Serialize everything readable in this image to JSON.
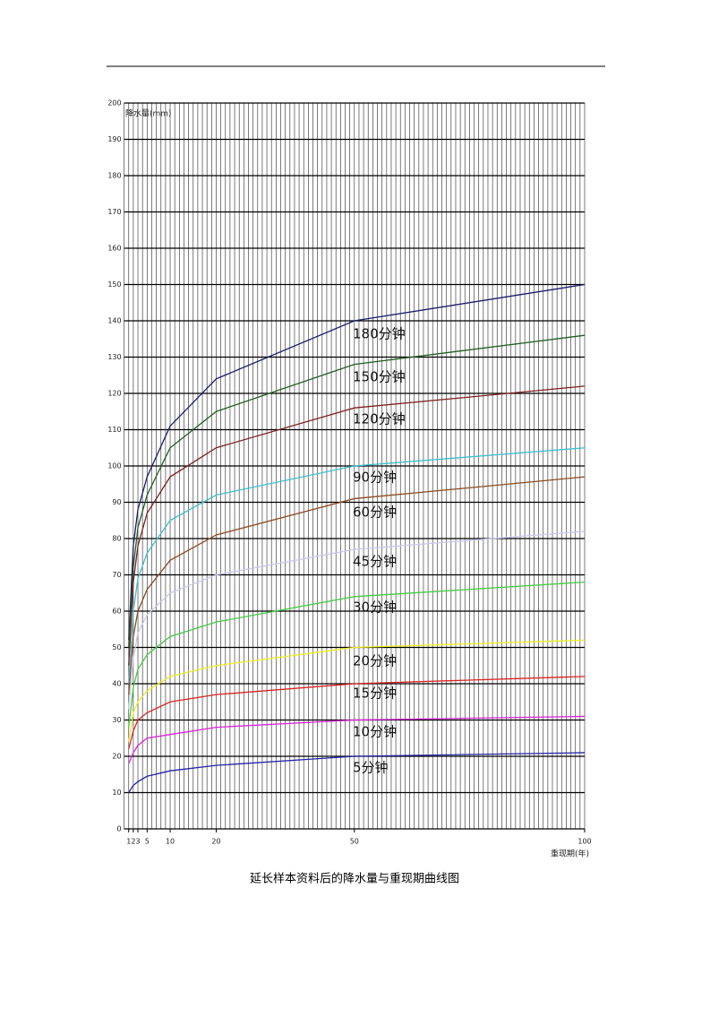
{
  "chart_data": {
    "type": "line",
    "caption": "延长样本资料后的降水量与重现期曲线图",
    "y_label": "降水量(mm)",
    "x_label": "重现期(年)",
    "xlim": [
      0,
      100
    ],
    "ylim": [
      0,
      200
    ],
    "xticks": [
      1,
      2,
      3,
      5,
      10,
      20,
      50,
      100
    ],
    "yticks": [
      0,
      10,
      20,
      30,
      40,
      50,
      60,
      70,
      80,
      90,
      100,
      110,
      120,
      130,
      140,
      150,
      160,
      170,
      180,
      190,
      200
    ],
    "x_minor_grid_step": 1,
    "grid": true,
    "x": [
      1,
      2,
      3,
      5,
      10,
      20,
      50,
      100
    ],
    "series": [
      {
        "name": "180分钟",
        "color": "#1a1a6e",
        "values": [
          52,
          78,
          88,
          97,
          111,
          124,
          140,
          150
        ]
      },
      {
        "name": "150分钟",
        "color": "#1f5f1f",
        "values": [
          50,
          72,
          83,
          92,
          105,
          115,
          128,
          136
        ]
      },
      {
        "name": "120分钟",
        "color": "#7f1f1f",
        "values": [
          45,
          68,
          78,
          87,
          97,
          105,
          116,
          122
        ]
      },
      {
        "name": "90分钟",
        "color": "#3cbfcf",
        "values": [
          40,
          60,
          69,
          76,
          85,
          92,
          100,
          105
        ]
      },
      {
        "name": "60分钟",
        "color": "#8b4a1f",
        "values": [
          37,
          53,
          60,
          66,
          74,
          81,
          91,
          97
        ]
      },
      {
        "name": "45分钟",
        "color": "#c8c8ee",
        "values": [
          33,
          47,
          54,
          59,
          65,
          70,
          77,
          82
        ]
      },
      {
        "name": "30分钟",
        "color": "#44cc44",
        "values": [
          28,
          39,
          44,
          48,
          53,
          57,
          64,
          68
        ]
      },
      {
        "name": "20分钟",
        "color": "#eeee22",
        "values": [
          24,
          32,
          35,
          38,
          42,
          45,
          50,
          52
        ]
      },
      {
        "name": "15分钟",
        "color": "#dd2222",
        "values": [
          22,
          27,
          30,
          32,
          35,
          37,
          40,
          42
        ]
      },
      {
        "name": "10分钟",
        "color": "#dd22dd",
        "values": [
          18,
          21,
          23,
          25,
          26,
          28,
          30,
          31
        ]
      },
      {
        "name": "5分钟",
        "color": "#2222aa",
        "values": [
          10,
          12,
          13,
          14.5,
          16,
          17.5,
          20,
          21
        ]
      }
    ]
  }
}
